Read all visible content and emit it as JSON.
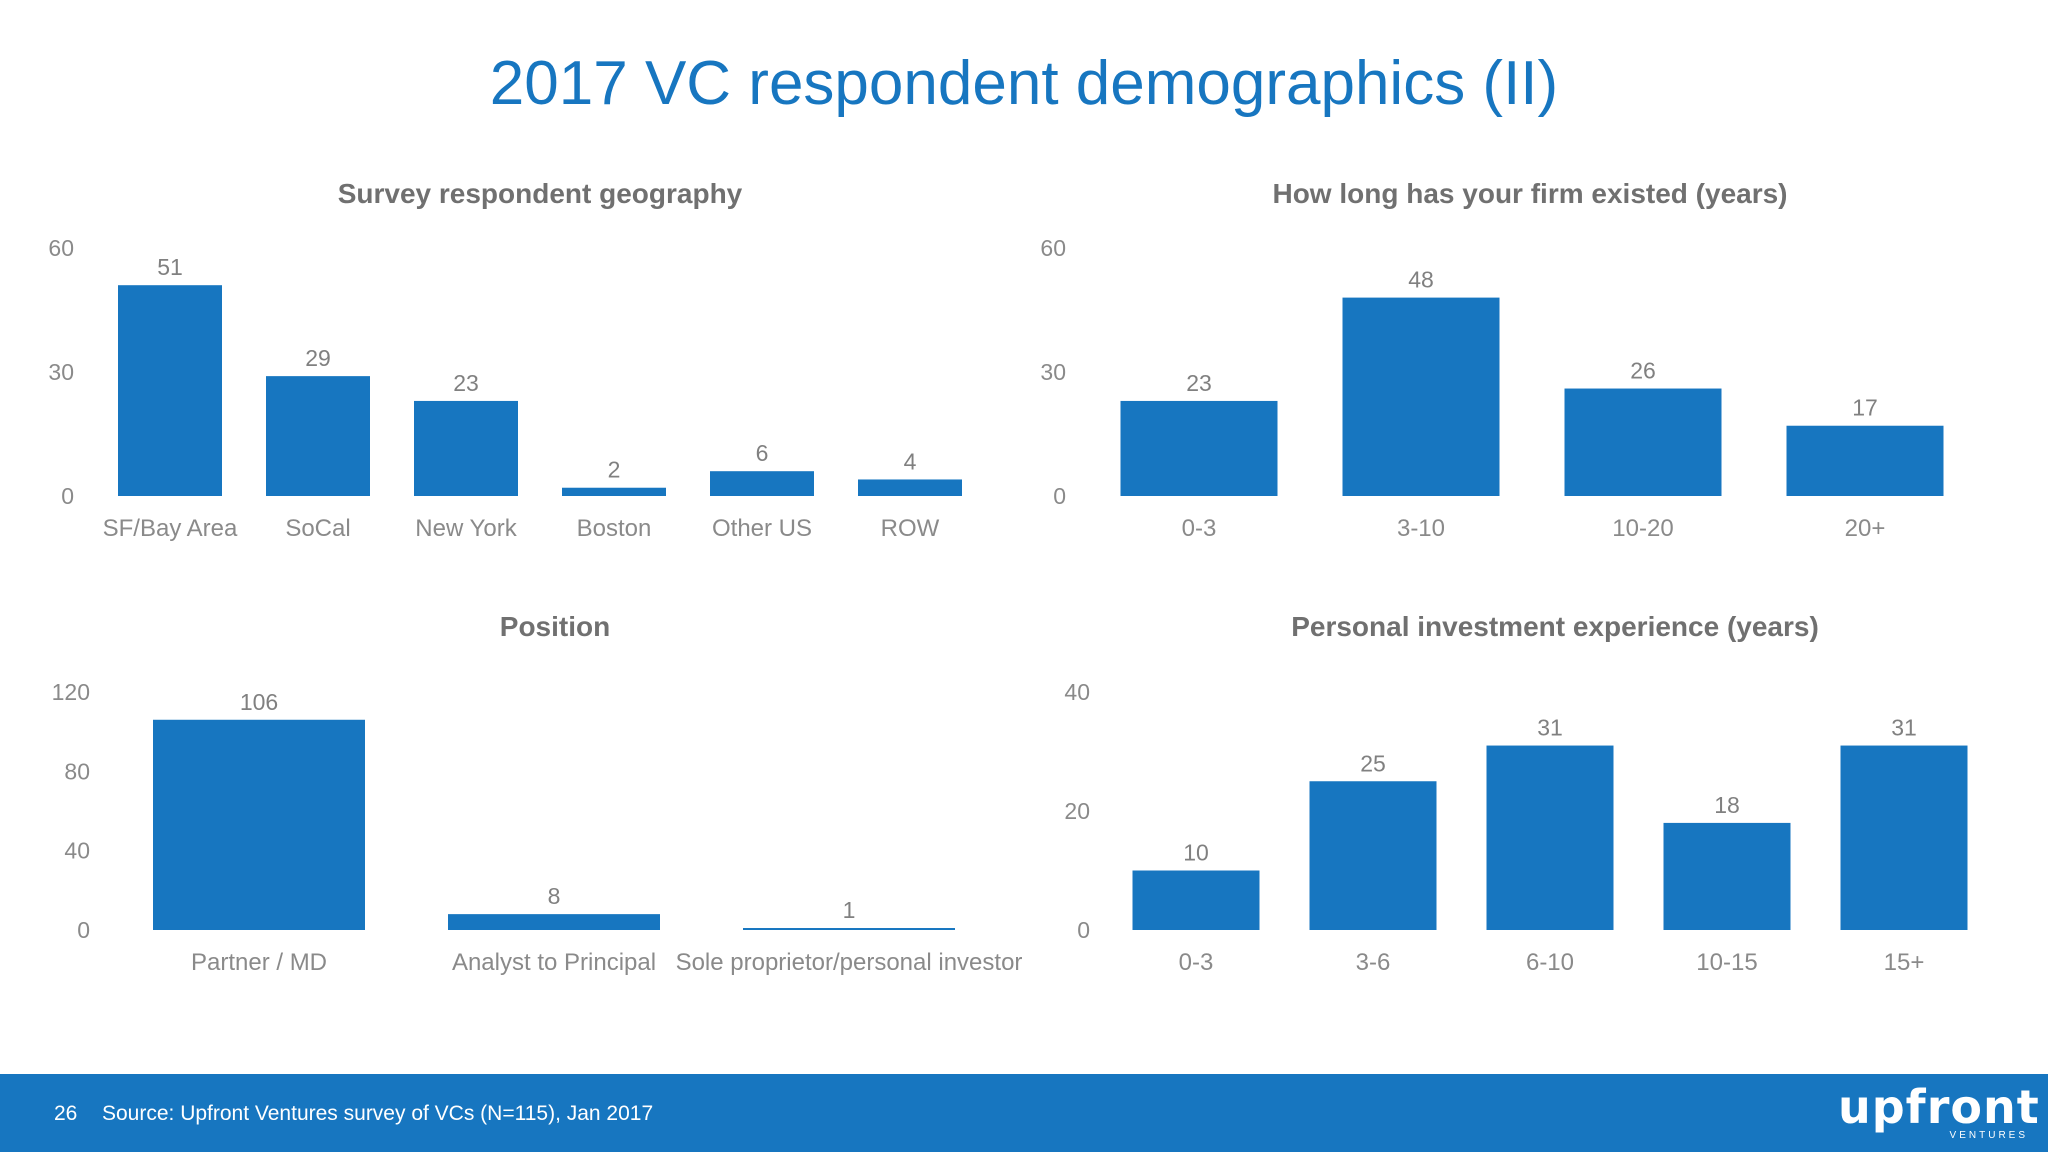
{
  "page": {
    "title": "2017 VC respondent demographics (II)",
    "accent_color": "#1776c0",
    "bar_color": "#1776c0"
  },
  "chart_data": [
    {
      "type": "bar",
      "title": "Survey respondent geography",
      "categories": [
        "SF/Bay Area",
        "SoCal",
        "New York",
        "Boston",
        "Other US",
        "ROW"
      ],
      "values": [
        51,
        29,
        23,
        2,
        6,
        4
      ],
      "yticks": [
        0,
        30,
        60
      ],
      "ylim": [
        0,
        60
      ],
      "grid": false
    },
    {
      "type": "bar",
      "title": "How long has your firm existed (years)",
      "categories": [
        "0-3",
        "3-10",
        "10-20",
        "20+"
      ],
      "values": [
        23,
        48,
        26,
        17
      ],
      "yticks": [
        0,
        30,
        60
      ],
      "ylim": [
        0,
        60
      ],
      "grid": false
    },
    {
      "type": "bar",
      "title": "Position",
      "categories": [
        "Partner / MD",
        "Analyst to Principal",
        "Sole proprietor/personal investor"
      ],
      "values": [
        106,
        8,
        1
      ],
      "yticks": [
        0,
        40,
        80,
        120
      ],
      "ylim": [
        0,
        120
      ],
      "grid": false
    },
    {
      "type": "bar",
      "title": "Personal investment experience (years)",
      "categories": [
        "0-3",
        "3-6",
        "6-10",
        "10-15",
        "15+"
      ],
      "values": [
        10,
        25,
        31,
        18,
        31
      ],
      "yticks": [
        0,
        20,
        40
      ],
      "ylim": [
        0,
        40
      ],
      "grid": false
    }
  ],
  "footer": {
    "page_number": "26",
    "source": "Source: Upfront Ventures survey of VCs (N=115), Jan 2017",
    "logo_text": "upfront",
    "logo_subtext": "VENTURES"
  }
}
